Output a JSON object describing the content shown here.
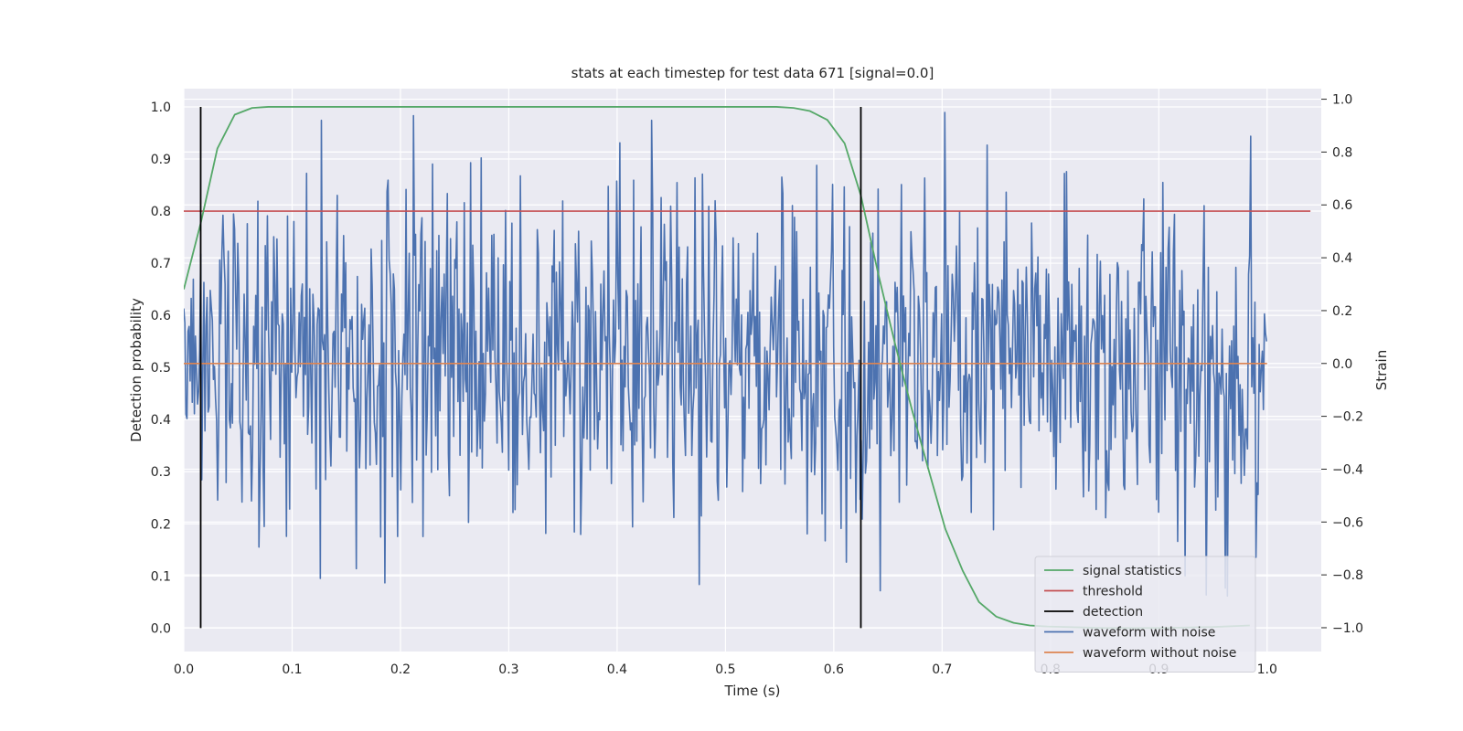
{
  "chart_data": {
    "type": "line",
    "title": "stats at each timestep for test data 671 [signal=0.0]",
    "xlabel": "Time (s)",
    "ylabel_left": "Detection probability",
    "ylabel_right": "Strain",
    "xlim": [
      0.0,
      1.05
    ],
    "ylim_left": [
      -0.045,
      1.035
    ],
    "ylim_right": [
      -1.09,
      1.04
    ],
    "x_ticks": [
      "0.0",
      "0.1",
      "0.2",
      "0.3",
      "0.4",
      "0.5",
      "0.6",
      "0.7",
      "0.8",
      "0.9",
      "1.0"
    ],
    "y_ticks_left": [
      "0.0",
      "0.1",
      "0.2",
      "0.3",
      "0.4",
      "0.5",
      "0.6",
      "0.7",
      "0.8",
      "0.9",
      "1.0"
    ],
    "y_ticks_right": [
      "−1.0",
      "−0.8",
      "−0.6",
      "−0.4",
      "−0.2",
      "0.0",
      "0.2",
      "0.4",
      "0.6",
      "0.8",
      "1.0"
    ],
    "grid": true,
    "legend_position": "lower-right",
    "colors": {
      "signal_statistics": "#55a868",
      "threshold": "#c44e52",
      "detection": "#000000",
      "waveform_with_noise": "#4c72b0",
      "waveform_without_noise": "#dd8452",
      "axes_background": "#eaeaf2",
      "grid": "#ffffff"
    },
    "series": [
      {
        "name": "signal statistics",
        "axis": "left",
        "x": [
          0.0,
          0.016,
          0.031,
          0.047,
          0.063,
          0.078,
          0.094,
          0.11,
          0.2,
          0.3,
          0.4,
          0.5,
          0.547,
          0.563,
          0.578,
          0.594,
          0.61,
          0.625,
          0.641,
          0.656,
          0.672,
          0.688,
          0.703,
          0.719,
          0.734,
          0.75,
          0.766,
          0.781,
          0.797,
          0.85,
          0.9,
          0.95,
          0.984
        ],
        "y": [
          0.65,
          0.78,
          0.92,
          0.985,
          0.998,
          1.0,
          1.0,
          1.0,
          1.0,
          1.0,
          1.0,
          1.0,
          1.0,
          0.998,
          0.992,
          0.975,
          0.93,
          0.83,
          0.68,
          0.55,
          0.42,
          0.3,
          0.19,
          0.11,
          0.05,
          0.022,
          0.01,
          0.005,
          0.003,
          0.0,
          0.0,
          0.002,
          0.005
        ]
      },
      {
        "name": "threshold",
        "axis": "left",
        "x": [
          0.0,
          1.04
        ],
        "y": [
          0.8,
          0.8
        ]
      },
      {
        "name": "detection",
        "axis": "left",
        "segments": [
          {
            "x": 0.0156,
            "y0": 0.0,
            "y1": 1.0
          },
          {
            "x": 0.625,
            "y0": 0.0,
            "y1": 1.0
          }
        ]
      },
      {
        "name": "waveform with noise",
        "axis": "right",
        "x_start": 0.0,
        "x_end": 0.9995,
        "num_points": 1024,
        "std": 0.32,
        "note_peaks": [
          {
            "x": 0.127,
            "y": 0.92
          },
          {
            "x": 0.432,
            "y": 0.92
          },
          {
            "x": 0.985,
            "y": 0.86
          },
          {
            "x": 0.186,
            "y": -0.83
          },
          {
            "x": 0.643,
            "y": -0.86
          },
          {
            "x": 0.961,
            "y": -0.85
          },
          {
            "x": 0.963,
            "y": -0.88
          }
        ]
      },
      {
        "name": "waveform without noise",
        "axis": "right",
        "x": [
          0.0,
          1.0
        ],
        "y": [
          0.0,
          0.0
        ]
      }
    ],
    "legend": [
      "signal statistics",
      "threshold",
      "detection",
      "waveform with noise",
      "waveform without noise"
    ]
  }
}
